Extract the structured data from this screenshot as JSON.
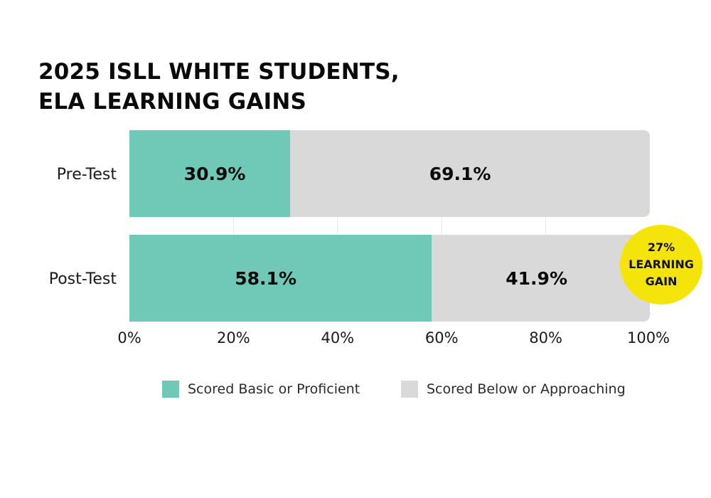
{
  "colors": {
    "proficient": "#6fc9b6",
    "below": "#d9d9d9",
    "badge": "#f5e409",
    "text": "#0a0a0a",
    "grid": "#e6e6e6"
  },
  "badge": {
    "value": "27%",
    "line1": "LEARNING",
    "line2": "GAIN"
  },
  "chart_data": {
    "type": "bar",
    "orientation": "horizontal",
    "stacked": true,
    "title": [
      "2025 ISLL WHITE STUDENTS,",
      "ELA LEARNING GAINS"
    ],
    "categories": [
      "Pre-Test",
      "Post-Test"
    ],
    "series": [
      {
        "name": "Scored Basic or Proficient",
        "values": [
          30.9,
          58.1
        ],
        "labels": [
          "30.9%",
          "58.1%"
        ],
        "color": "#6fc9b6"
      },
      {
        "name": "Scored Below or Approaching",
        "values": [
          69.1,
          41.9
        ],
        "labels": [
          "69.1%",
          "41.9%"
        ],
        "color": "#d9d9d9"
      }
    ],
    "xlim": [
      0,
      100
    ],
    "xticks": [
      0,
      20,
      40,
      60,
      80,
      100
    ],
    "xtick_labels": [
      "0%",
      "20%",
      "40%",
      "60%",
      "80%",
      "100%"
    ],
    "grid": true,
    "legend": "bottom"
  }
}
